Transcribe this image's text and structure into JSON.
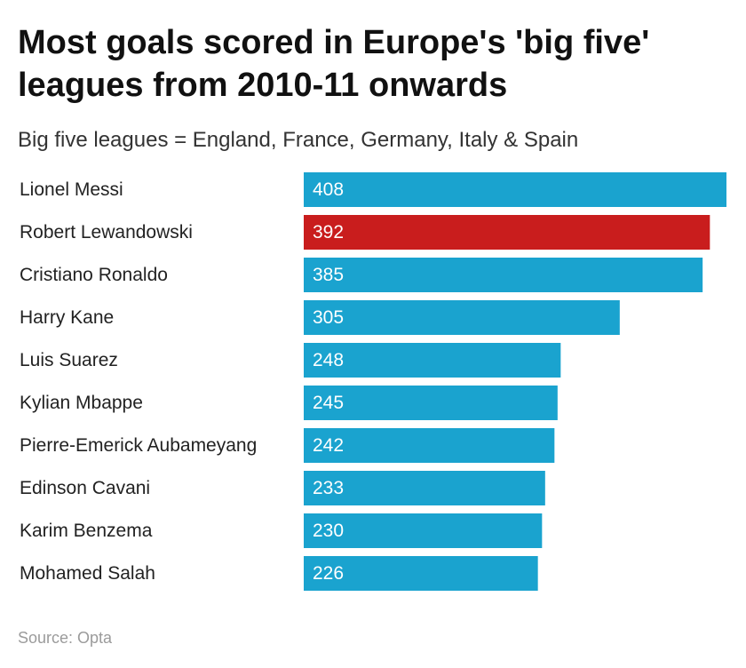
{
  "chart_data": {
    "type": "bar",
    "orientation": "horizontal",
    "title": "Most goals scored in Europe's 'big five' leagues from 2010-11 onwards",
    "subtitle": "Big five leagues = England, France, Germany, Italy & Spain",
    "source": "Source: Opta",
    "categories": [
      "Lionel Messi",
      "Robert Lewandowski",
      "Cristiano Ronaldo",
      "Harry Kane",
      "Luis Suarez",
      "Kylian Mbappe",
      "Pierre-Emerick Aubameyang",
      "Edinson Cavani",
      "Karim Benzema",
      "Mohamed Salah"
    ],
    "values": [
      408,
      392,
      385,
      305,
      248,
      245,
      242,
      233,
      230,
      226
    ],
    "highlight_index": 1,
    "colors": {
      "bar": "#1aa3cf",
      "highlight": "#c91d1d"
    },
    "xlim": [
      0,
      408
    ],
    "grid": false,
    "legend": "none"
  }
}
